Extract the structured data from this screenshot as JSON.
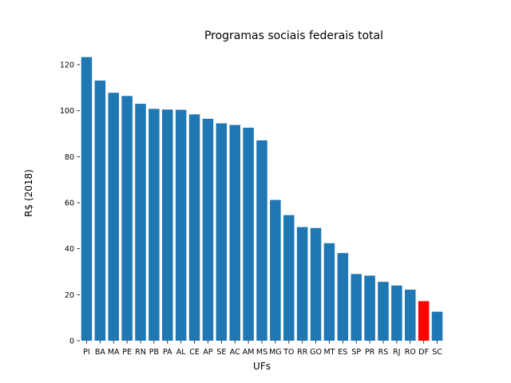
{
  "chart_data": {
    "type": "bar",
    "title": "Programas sociais federais total",
    "xlabel": "UFs",
    "ylabel": "R$ (2018)",
    "ylim": [
      0,
      128
    ],
    "yticks": [
      0,
      20,
      40,
      60,
      80,
      100,
      120
    ],
    "grid": false,
    "categories": [
      "PI",
      "BA",
      "MA",
      "PE",
      "RN",
      "PB",
      "PA",
      "AL",
      "CE",
      "AP",
      "SE",
      "AC",
      "AM",
      "MS",
      "MG",
      "TO",
      "RR",
      "GO",
      "MT",
      "ES",
      "SP",
      "PR",
      "RS",
      "RJ",
      "RO",
      "DF",
      "SC"
    ],
    "values": [
      123.3,
      113.1,
      107.8,
      106.4,
      103.0,
      100.8,
      100.5,
      100.4,
      98.4,
      96.5,
      94.5,
      93.8,
      92.6,
      87.1,
      61.2,
      54.6,
      49.4,
      49.0,
      42.4,
      38.1,
      29.0,
      28.3,
      25.6,
      24.0,
      22.2,
      17.2,
      12.6
    ],
    "colors": {
      "default": "#1f77b4",
      "highlight": "#ff0000"
    },
    "highlight_category": "DF"
  }
}
